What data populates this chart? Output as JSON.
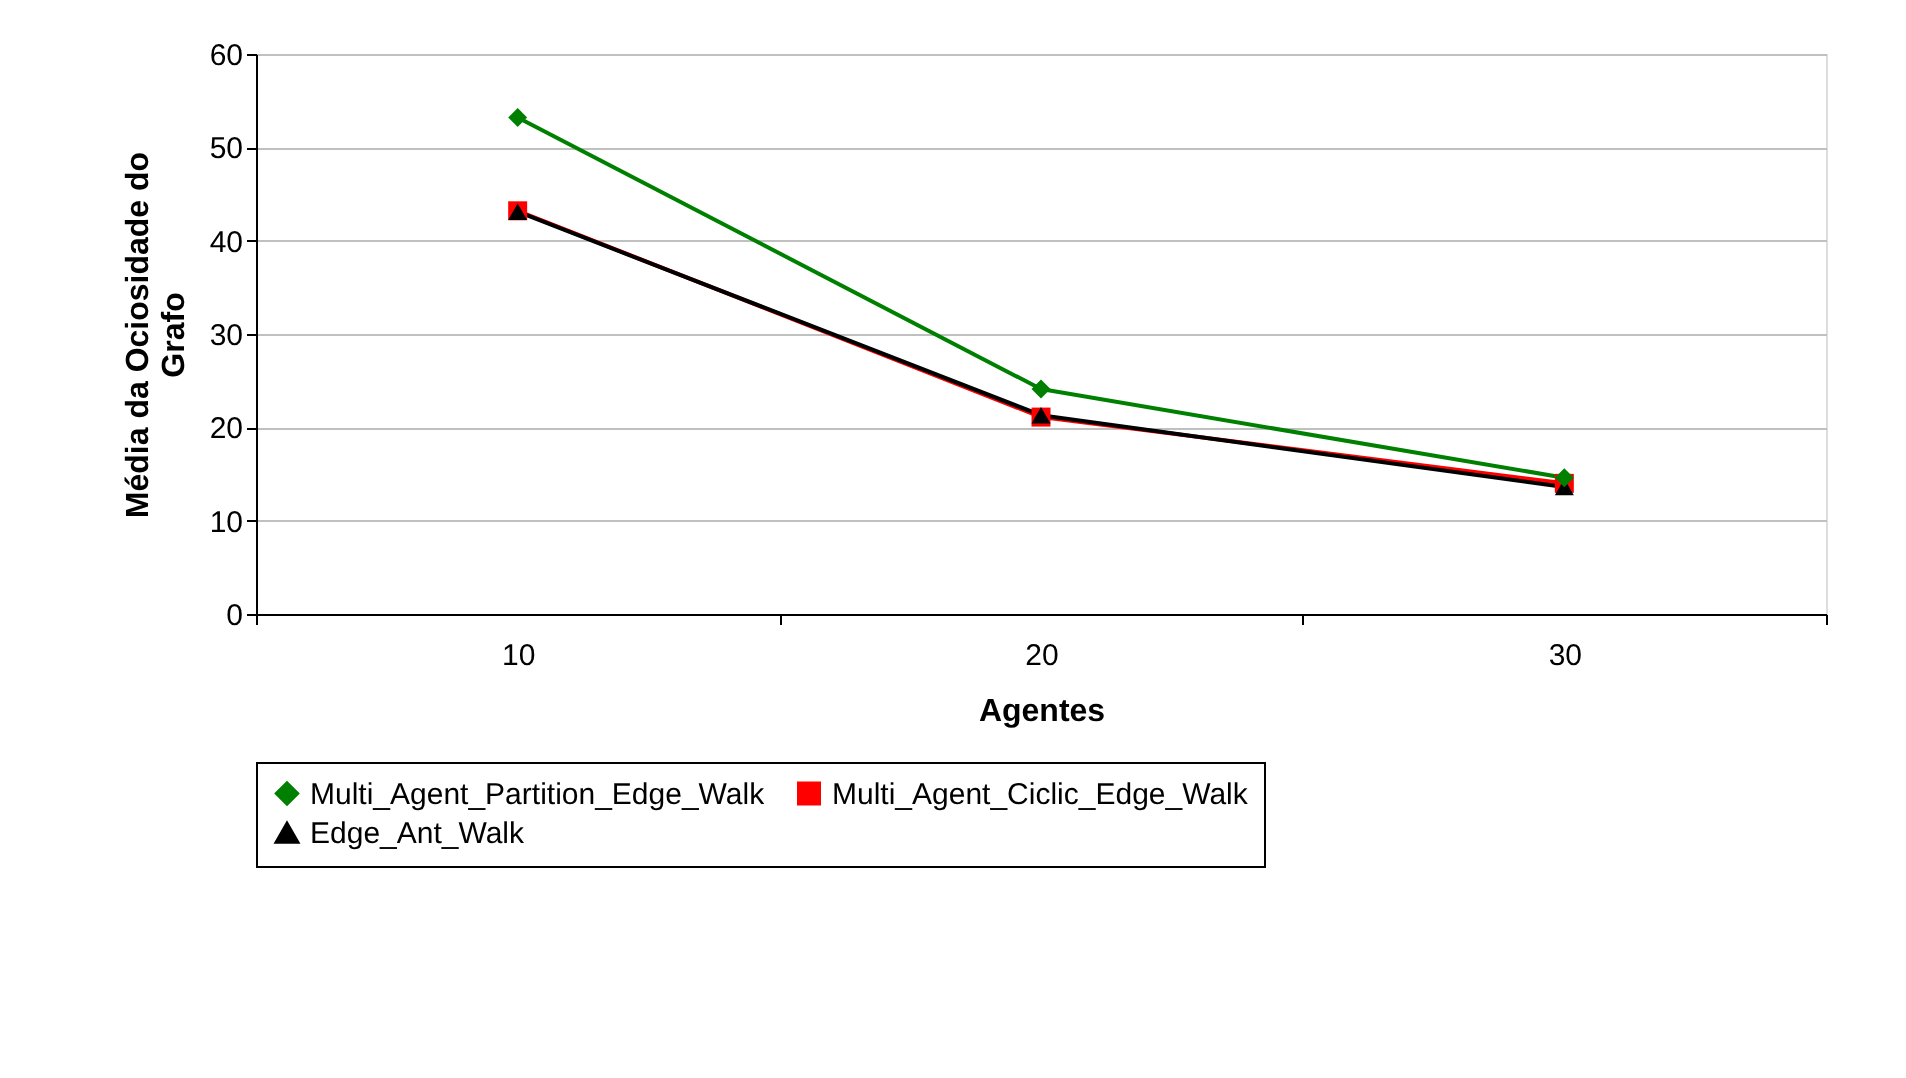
{
  "chart_data": {
    "type": "line",
    "xlabel": "Agentes",
    "ylabel": "Média da Ociosidade do Grafo",
    "categories": [
      "10",
      "20",
      "30"
    ],
    "ylim": [
      0,
      60
    ],
    "yticks": [
      0,
      10,
      20,
      30,
      40,
      50,
      60
    ],
    "grid": "y",
    "legend": "bottom",
    "series": [
      {
        "name": "Multi_Agent_Partition_Edge_Walk",
        "color": "#008000",
        "marker": "diamond",
        "values": [
          53.2,
          24.1,
          14.6
        ]
      },
      {
        "name": "Multi_Agent_Ciclic_Edge_Walk",
        "color": "#ff0000",
        "marker": "square",
        "values": [
          43.2,
          21.1,
          14.0
        ]
      },
      {
        "name": "Edge_Ant_Walk",
        "color": "#000000",
        "marker": "triangle",
        "values": [
          43.1,
          21.3,
          13.6
        ]
      }
    ]
  }
}
